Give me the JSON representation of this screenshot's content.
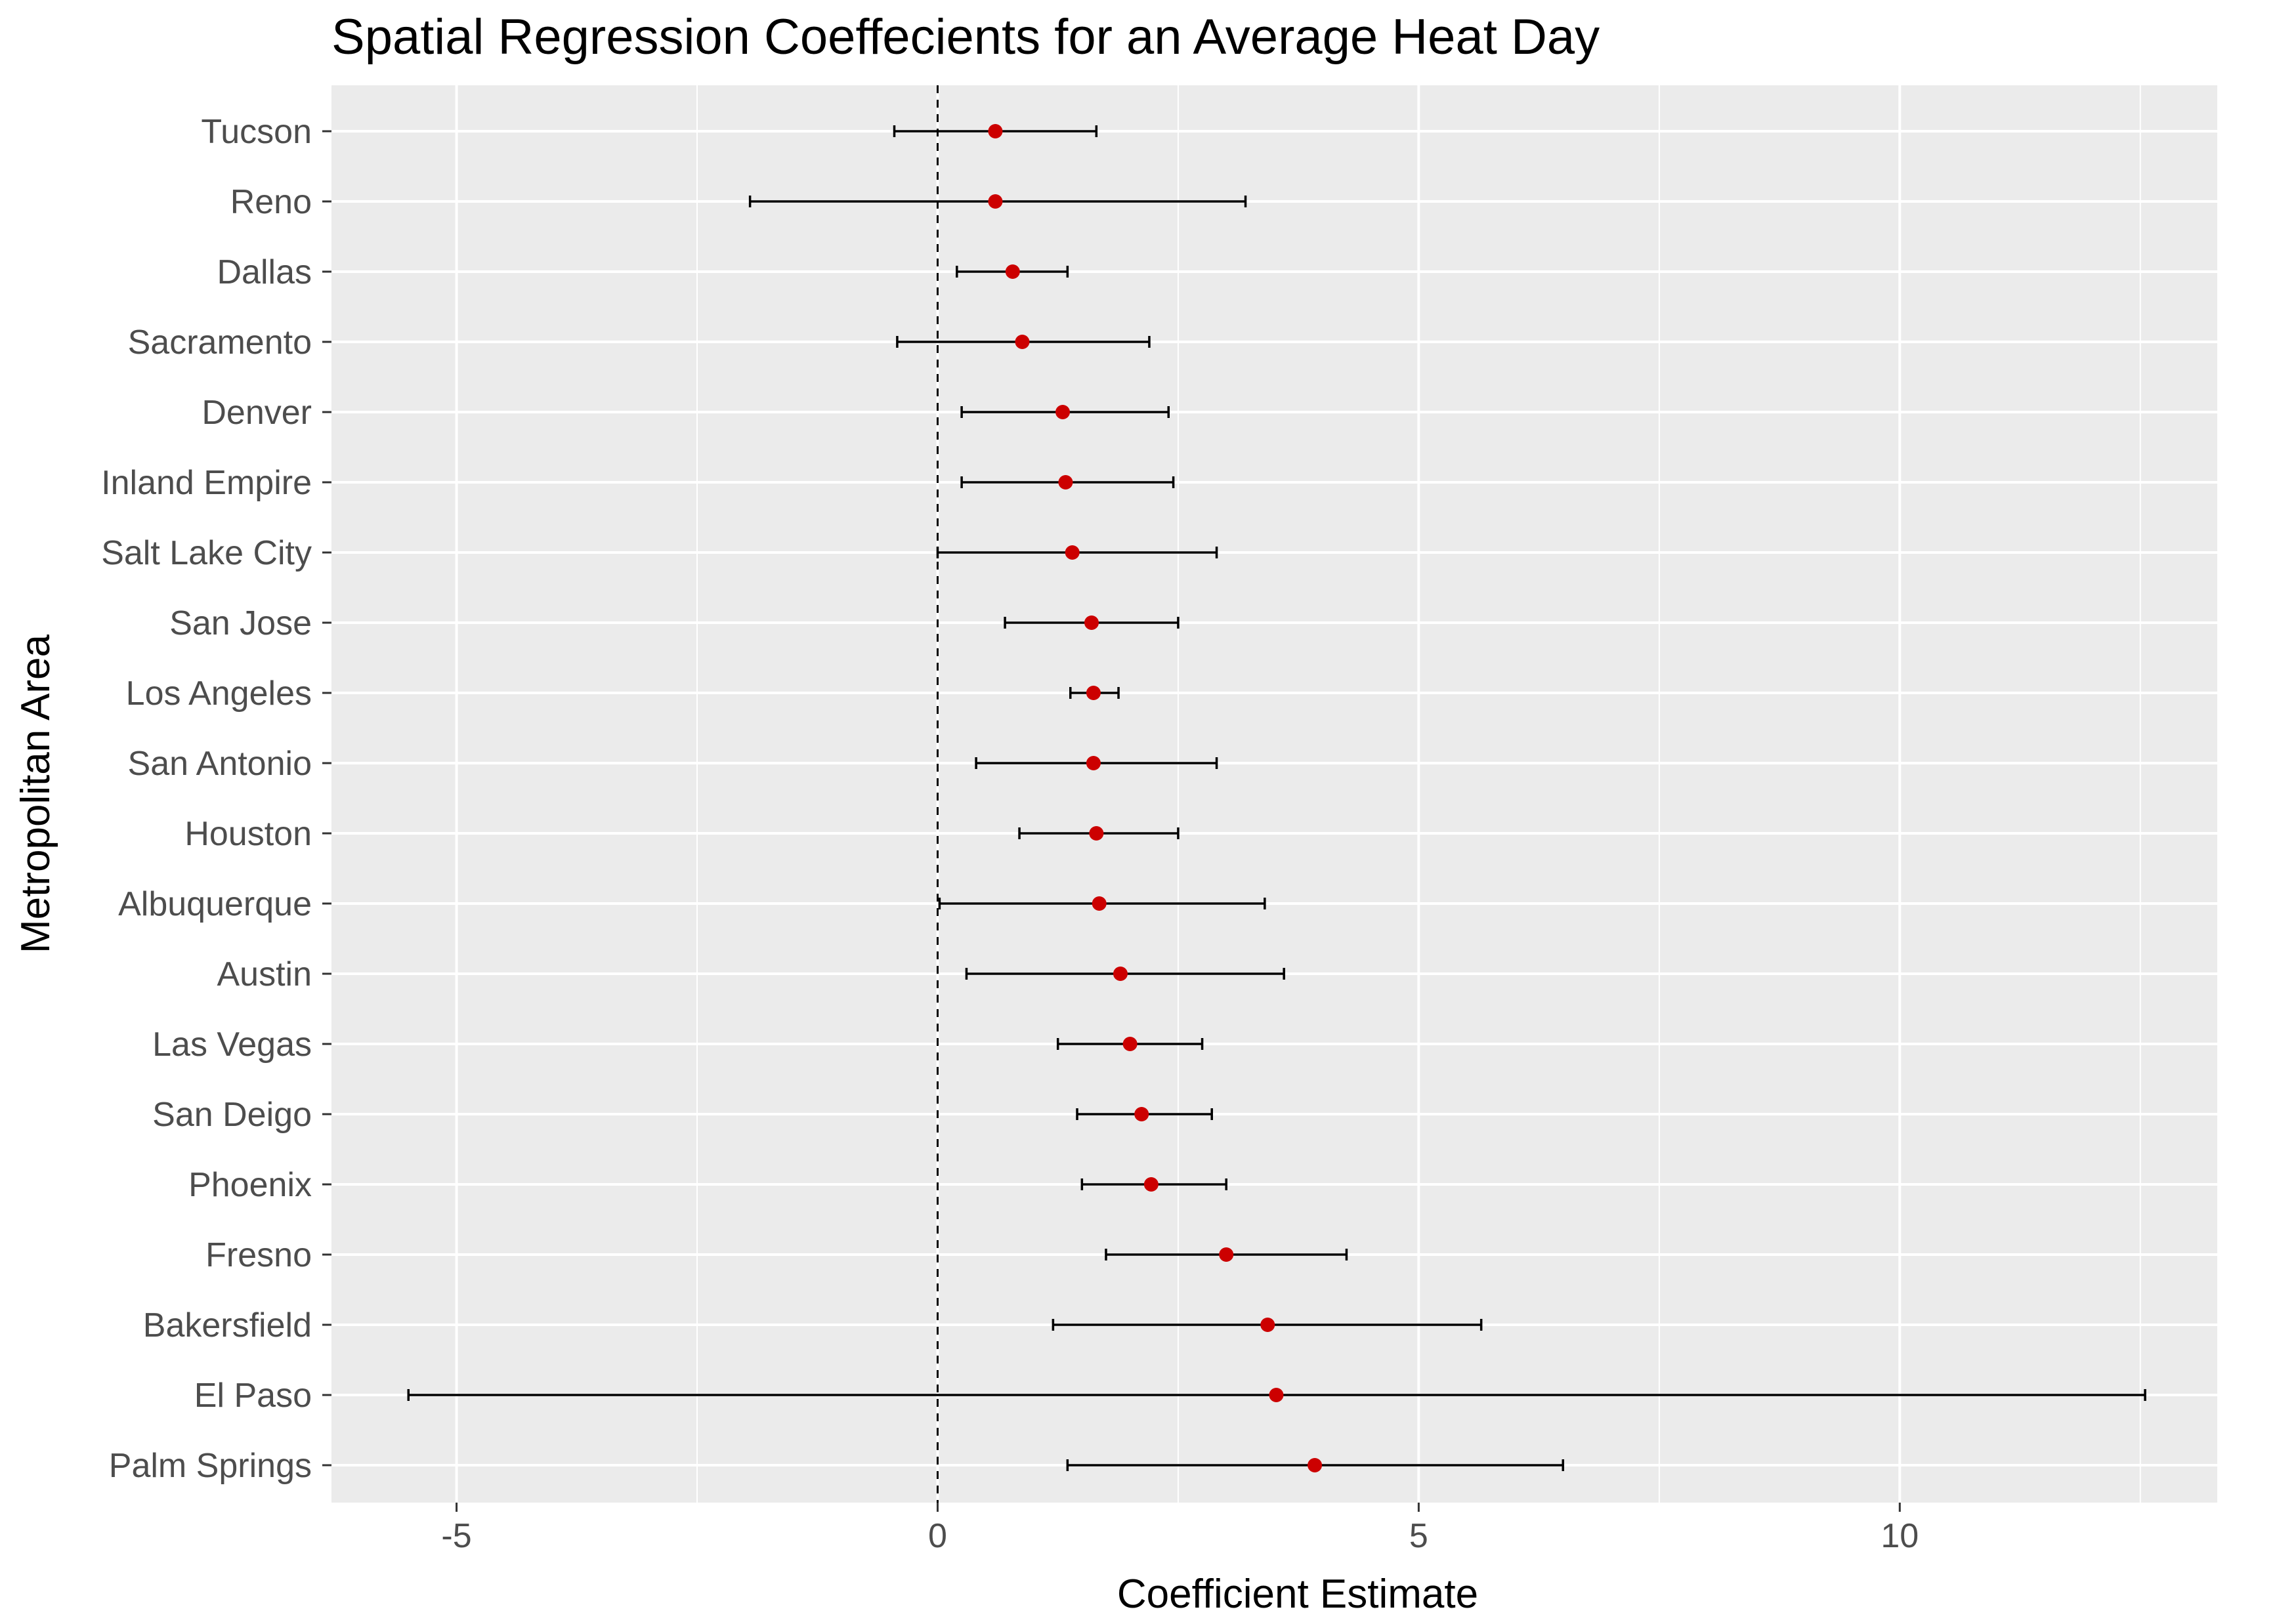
{
  "chart_data": {
    "type": "forest",
    "title": "Spatial Regression Coeffecients for an Average Heat Day",
    "xlabel": "Coefficient Estimate",
    "ylabel": "Metropolitan Area",
    "xlim": [
      -6.3,
      13.3
    ],
    "xticks": [
      -5,
      0,
      5,
      10
    ],
    "xtick_labels": [
      "-5",
      "0",
      "5",
      "10"
    ],
    "reference_line": 0,
    "grid": true,
    "colors": {
      "panel_background": "#ebebeb",
      "grid": "#ffffff",
      "point": "#cc0000",
      "errorbar": "#000000",
      "reference_line": "#000000"
    },
    "series": [
      {
        "name": "Tucson",
        "estimate": 0.6,
        "lower": -0.45,
        "upper": 1.65
      },
      {
        "name": "Reno",
        "estimate": 0.6,
        "lower": -1.95,
        "upper": 3.2
      },
      {
        "name": "Dallas",
        "estimate": 0.78,
        "lower": 0.2,
        "upper": 1.35
      },
      {
        "name": "Sacramento",
        "estimate": 0.88,
        "lower": -0.42,
        "upper": 2.2
      },
      {
        "name": "Denver",
        "estimate": 1.3,
        "lower": 0.25,
        "upper": 2.4
      },
      {
        "name": "Inland Empire",
        "estimate": 1.33,
        "lower": 0.25,
        "upper": 2.45
      },
      {
        "name": "Salt Lake City",
        "estimate": 1.4,
        "lower": 0.0,
        "upper": 2.9
      },
      {
        "name": "San Jose",
        "estimate": 1.6,
        "lower": 0.7,
        "upper": 2.5
      },
      {
        "name": "Los Angeles",
        "estimate": 1.62,
        "lower": 1.38,
        "upper": 1.88
      },
      {
        "name": "San Antonio",
        "estimate": 1.62,
        "lower": 0.4,
        "upper": 2.9
      },
      {
        "name": "Houston",
        "estimate": 1.65,
        "lower": 0.85,
        "upper": 2.5
      },
      {
        "name": "Albuquerque",
        "estimate": 1.68,
        "lower": 0.02,
        "upper": 3.4
      },
      {
        "name": "Austin",
        "estimate": 1.9,
        "lower": 0.3,
        "upper": 3.6
      },
      {
        "name": "Las Vegas",
        "estimate": 2.0,
        "lower": 1.25,
        "upper": 2.75
      },
      {
        "name": "San Deigo",
        "estimate": 2.12,
        "lower": 1.45,
        "upper": 2.85
      },
      {
        "name": "Phoenix",
        "estimate": 2.22,
        "lower": 1.5,
        "upper": 3.0
      },
      {
        "name": "Fresno",
        "estimate": 3.0,
        "lower": 1.75,
        "upper": 4.25
      },
      {
        "name": "Bakersfield",
        "estimate": 3.43,
        "lower": 1.2,
        "upper": 5.65
      },
      {
        "name": "El Paso",
        "estimate": 3.52,
        "lower": -5.5,
        "upper": 12.55
      },
      {
        "name": "Palm Springs",
        "estimate": 3.92,
        "lower": 1.35,
        "upper": 6.5
      }
    ]
  }
}
